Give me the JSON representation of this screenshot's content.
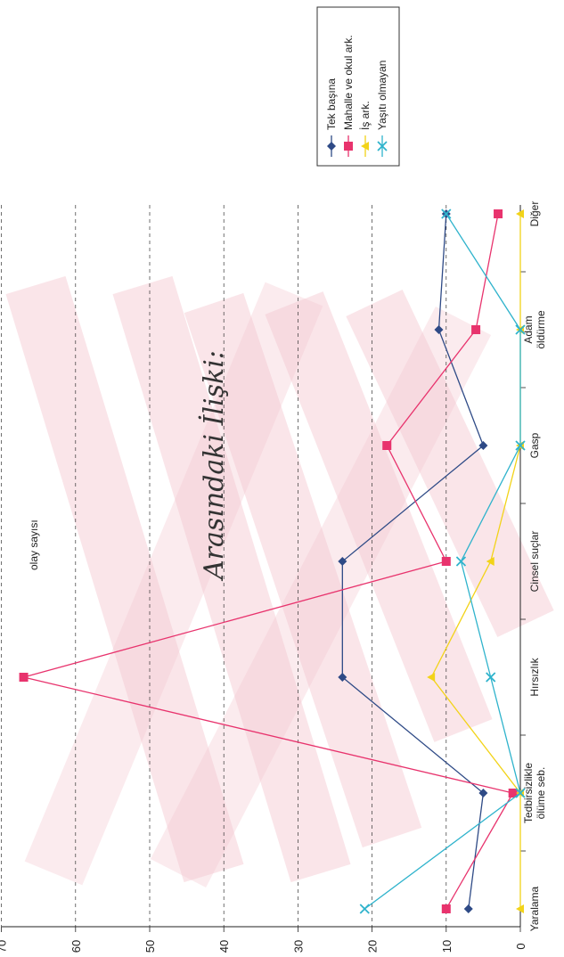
{
  "handwritten_caption": "Arasındaki İlişki:",
  "colors": {
    "tek": "#2e4a86",
    "mahalle": "#e8336d",
    "is": "#f2d318",
    "yasiti": "#2fb3cc",
    "watermark": "#f4c7d0"
  },
  "chart_data": {
    "type": "line",
    "categories": [
      "Yaralama",
      "Tedbirsizlikle ölüme seb.",
      "Hırsızlık",
      "Cinsel suçlar",
      "Gasp",
      "Adam öldürme",
      "Diğer"
    ],
    "category_lines": [
      [
        "Yaralama"
      ],
      [
        "Tedbirsizlikle",
        "ölüme seb."
      ],
      [
        "Hırsızlık"
      ],
      [
        "Cinsel suçlar"
      ],
      [
        "Gasp"
      ],
      [
        "Adam",
        "öldürme"
      ],
      [
        "Diğer"
      ]
    ],
    "ylabel": "olay sayısı",
    "ylim": [
      0,
      70
    ],
    "yticks": [
      0,
      10,
      20,
      30,
      40,
      50,
      60,
      70
    ],
    "grid": true,
    "legend_position": "top-right",
    "series": [
      {
        "name": "Tek başına",
        "color_key": "tek",
        "marker": "diamond",
        "values": [
          7,
          5,
          24,
          24,
          5,
          11,
          10
        ]
      },
      {
        "name": "Mahalle ve okul ark.",
        "color_key": "mahalle",
        "marker": "square",
        "values": [
          10,
          1,
          67,
          10,
          18,
          6,
          3
        ]
      },
      {
        "name": "İş ark.",
        "color_key": "is",
        "marker": "triangle",
        "values": [
          0,
          0,
          12,
          4,
          0,
          0,
          0
        ]
      },
      {
        "name": "Yaşıtı olmayan",
        "color_key": "yasiti",
        "marker": "x",
        "values": [
          21,
          0,
          4,
          8,
          0,
          0,
          10
        ]
      }
    ]
  }
}
